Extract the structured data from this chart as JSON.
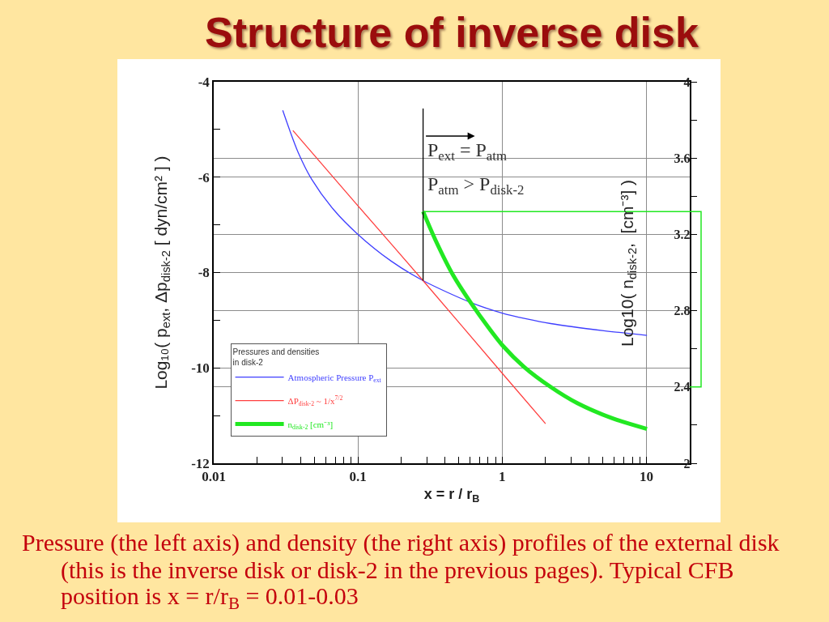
{
  "chart_data": {
    "type": "line",
    "title": "Structure of inverse disk",
    "xlabel": "x = r / r$_{B}$",
    "ylabel": "Log₁₀( p$_{ext}$, Δp$_{disk-2}$ [ dyn/cm² ] )",
    "y2label": "Log10( n$_{disk-2}$,  [cm⁻³] )",
    "legend_title": "Pressures and densities\nin disk-2",
    "annotations": [
      "Pressure (the left axis) and density (the right axis) profiles of the external disk\n(this is the inverse disk or disk-2 in the previous pages). Typical CFB\nposition is x = r/r$_{B}$ = 0.01-0.03"
    ],
    "log": "x",
    "xlim": [
      0.01,
      20
    ],
    "xticks": [
      0.01,
      {
        "value": 0.02,
        "label": null
      },
      {
        "value": 0.03,
        "label": null
      },
      {
        "value": 0.04,
        "label": null
      },
      {
        "value": 0.05,
        "label": null
      },
      {
        "value": 0.06,
        "label": null
      },
      {
        "value": 0.07,
        "label": null
      },
      {
        "value": 0.08,
        "label": null
      },
      {
        "value": 0.09,
        "label": null
      },
      0.1,
      {
        "value": 0.2,
        "label": null
      },
      {
        "value": 0.3,
        "label": null
      },
      {
        "value": 0.4,
        "label": null
      },
      {
        "value": 0.5,
        "label": null
      },
      {
        "value": 0.6,
        "label": null
      },
      {
        "value": 0.7,
        "label": null
      },
      {
        "value": 0.8,
        "label": null
      },
      {
        "value": 0.9,
        "label": null
      },
      1,
      {
        "value": 2,
        "label": null
      },
      {
        "value": 3,
        "label": null
      },
      {
        "value": 4,
        "label": null
      },
      {
        "value": 5,
        "label": null
      },
      {
        "value": 6,
        "label": null
      },
      {
        "value": 7,
        "label": null
      },
      {
        "value": 8,
        "label": null
      },
      {
        "value": 9,
        "label": null
      },
      10
    ],
    "ylim": [
      -12,
      -4
    ],
    "yticks": [
      -12,
      {
        "value": -11,
        "label": null
      },
      -10,
      {
        "value": -9,
        "label": null
      },
      -8,
      {
        "value": -7,
        "label": null
      },
      -6,
      {
        "value": -5,
        "label": null
      },
      -4
    ],
    "y2lim": [
      2,
      4
    ],
    "y2ticks": [
      2,
      {
        "value": 2.2,
        "label": null
      },
      2.4,
      {
        "value": 2.6,
        "label": null
      },
      2.8,
      {
        "value": 3.0,
        "label": null
      },
      3.2,
      {
        "value": 3.4,
        "label": null
      },
      3.6,
      {
        "value": 3.8,
        "label": null
      },
      4
    ],
    "grid": true,
    "legend": "bottom left",
    "marker": "none",
    "line_style": "solid",
    "series": [
      {
        "name": "Atmospheric Pressure P$_{ext}$",
        "color": "#3f3fff",
        "x": [
          0.0301,
          0.0334,
          0.0385,
          0.0477,
          0.0678,
          0.1,
          0.17,
          0.283,
          0.608,
          1,
          1.47,
          2.17,
          5.07,
          10.1
        ],
        "values": [
          -4.6,
          -4.99,
          -5.48,
          -6.04,
          -6.68,
          -7.2,
          -7.76,
          -8.17,
          -8.63,
          -8.85,
          -8.97,
          -9.07,
          -9.22,
          -9.32
        ]
      },
      {
        "name": "ΔP$_{disk-2}$ ~ 1/x$^{7/2}$",
        "color": "#ff3f3f",
        "x": [
          0.0354,
          0.1,
          0.283,
          1,
          2.0
        ],
        "values": [
          -5.02,
          -6.6,
          -8.17,
          -10.11,
          -11.17
        ]
      },
      {
        "name": "n$_{disk-2}$ [cm⁻³]",
        "color": "#22e822",
        "axis": "y2",
        "x": [
          0.283,
          0.345,
          0.458,
          0.608,
          0.807,
          1,
          1.42,
          2.17,
          3.32,
          5.85,
          10.1
        ],
        "values": [
          3.32,
          3.17,
          2.985,
          2.84,
          2.71,
          2.62,
          2.505,
          2.4,
          2.315,
          2.235,
          2.18
        ]
      }
    ],
    "ref_lines": [
      {
        "axis": "x",
        "value": 0.283,
        "label": "P$_{ext}$ = P$_{atm}$\nP$_{atm}$ > P$_{disk-2}$",
        "color": "#000000"
      }
    ]
  }
}
